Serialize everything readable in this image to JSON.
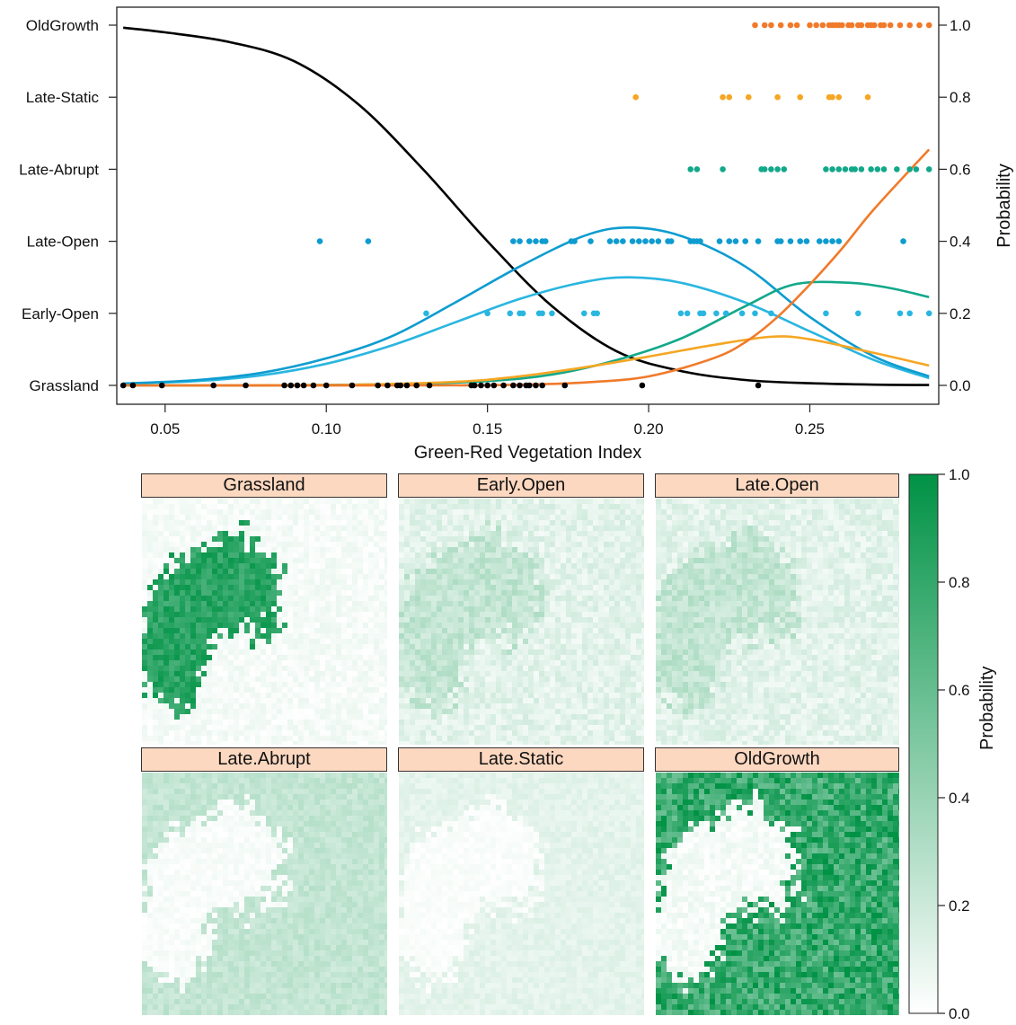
{
  "chart_data": [
    {
      "type": "scatter",
      "title": "",
      "xlabel": "Green-Red Vegetation Index",
      "ylabel_right": "Probability",
      "xlim": [
        0.035,
        0.29
      ],
      "ylim": [
        0,
        1
      ],
      "x_ticks": [
        0.05,
        0.1,
        0.15,
        0.2,
        0.25
      ],
      "x_tick_labels": [
        "0.05",
        "0.10",
        "0.15",
        "0.20",
        "0.25"
      ],
      "y_ticks_right": [
        0.0,
        0.2,
        0.4,
        0.6,
        0.8,
        1.0
      ],
      "y_tick_labels_right": [
        "0.0",
        "0.2",
        "0.4",
        "0.6",
        "0.8",
        "1.0"
      ],
      "categories": [
        "Grassland",
        "Early-Open",
        "Late-Open",
        "Late-Abrupt",
        "Late-Static",
        "OldGrowth"
      ],
      "colors": {
        "Grassland": "#000000",
        "Early-Open": "#29b6e0",
        "Late-Open": "#0e9cd0",
        "Late-Abrupt": "#12a88a",
        "Late-Static": "#f5a623",
        "OldGrowth": "#f07a2a"
      },
      "points": {
        "Grassland": [
          0.037,
          0.04,
          0.049,
          0.065,
          0.075,
          0.087,
          0.089,
          0.091,
          0.093,
          0.096,
          0.1,
          0.108,
          0.116,
          0.119,
          0.122,
          0.123,
          0.125,
          0.128,
          0.132,
          0.145,
          0.146,
          0.148,
          0.15,
          0.152,
          0.155,
          0.158,
          0.16,
          0.162,
          0.163,
          0.165,
          0.167,
          0.174,
          0.198,
          0.234
        ],
        "Early-Open": [
          0.131,
          0.15,
          0.157,
          0.16,
          0.161,
          0.166,
          0.167,
          0.17,
          0.18,
          0.183,
          0.184,
          0.21,
          0.212,
          0.216,
          0.217,
          0.221,
          0.224,
          0.229,
          0.233,
          0.238,
          0.255,
          0.265,
          0.278,
          0.281,
          0.287
        ],
        "Late-Open": [
          0.098,
          0.113,
          0.158,
          0.16,
          0.163,
          0.165,
          0.167,
          0.168,
          0.176,
          0.177,
          0.182,
          0.188,
          0.19,
          0.192,
          0.195,
          0.197,
          0.199,
          0.201,
          0.203,
          0.206,
          0.207,
          0.213,
          0.214,
          0.215,
          0.216,
          0.222,
          0.225,
          0.227,
          0.23,
          0.234,
          0.24,
          0.241,
          0.244,
          0.247,
          0.249,
          0.253,
          0.255,
          0.257,
          0.259,
          0.279
        ],
        "Late-Abrupt": [
          0.213,
          0.215,
          0.223,
          0.235,
          0.236,
          0.238,
          0.24,
          0.242,
          0.255,
          0.257,
          0.259,
          0.261,
          0.263,
          0.264,
          0.266,
          0.269,
          0.271,
          0.273,
          0.277,
          0.281,
          0.283,
          0.287
        ],
        "Late-Static": [
          0.196,
          0.223,
          0.225,
          0.231,
          0.24,
          0.247,
          0.256,
          0.257,
          0.259,
          0.268
        ],
        "OldGrowth": [
          0.233,
          0.236,
          0.238,
          0.241,
          0.244,
          0.246,
          0.25,
          0.252,
          0.254,
          0.256,
          0.257,
          0.258,
          0.259,
          0.26,
          0.262,
          0.263,
          0.265,
          0.266,
          0.268,
          0.269,
          0.27,
          0.272,
          0.273,
          0.275,
          0.278,
          0.281,
          0.284,
          0.287
        ]
      },
      "series": [
        {
          "name": "Grassland",
          "x": [
            0.037,
            0.05,
            0.07,
            0.09,
            0.11,
            0.13,
            0.15,
            0.17,
            0.19,
            0.21,
            0.23,
            0.25,
            0.27,
            0.287
          ],
          "y": [
            0.993,
            0.98,
            0.953,
            0.9,
            0.78,
            0.6,
            0.4,
            0.22,
            0.095,
            0.04,
            0.015,
            0.006,
            0.002,
            0.001
          ]
        },
        {
          "name": "Early-Open",
          "x": [
            0.037,
            0.06,
            0.08,
            0.1,
            0.12,
            0.14,
            0.16,
            0.18,
            0.194,
            0.21,
            0.23,
            0.25,
            0.27,
            0.287
          ],
          "y": [
            0.005,
            0.012,
            0.028,
            0.06,
            0.11,
            0.175,
            0.24,
            0.287,
            0.3,
            0.285,
            0.23,
            0.15,
            0.07,
            0.02
          ]
        },
        {
          "name": "Late-Open",
          "x": [
            0.037,
            0.06,
            0.08,
            0.1,
            0.12,
            0.14,
            0.16,
            0.18,
            0.194,
            0.21,
            0.23,
            0.25,
            0.27,
            0.287
          ],
          "y": [
            0.005,
            0.015,
            0.035,
            0.075,
            0.135,
            0.23,
            0.33,
            0.415,
            0.438,
            0.415,
            0.33,
            0.19,
            0.08,
            0.025
          ]
        },
        {
          "name": "Late-Abrupt",
          "x": [
            0.037,
            0.08,
            0.12,
            0.15,
            0.17,
            0.19,
            0.21,
            0.23,
            0.245,
            0.262,
            0.275,
            0.287
          ],
          "y": [
            0.0,
            0.0,
            0.003,
            0.012,
            0.03,
            0.07,
            0.13,
            0.22,
            0.28,
            0.285,
            0.27,
            0.245
          ]
        },
        {
          "name": "Late-Static",
          "x": [
            0.037,
            0.1,
            0.14,
            0.16,
            0.18,
            0.2,
            0.22,
            0.238,
            0.25,
            0.27,
            0.287
          ],
          "y": [
            0.0,
            0.001,
            0.01,
            0.025,
            0.05,
            0.08,
            0.112,
            0.135,
            0.128,
            0.09,
            0.055
          ]
        },
        {
          "name": "OldGrowth",
          "x": [
            0.037,
            0.13,
            0.16,
            0.18,
            0.2,
            0.22,
            0.23,
            0.24,
            0.25,
            0.26,
            0.27,
            0.287
          ],
          "y": [
            0.0,
            0.0,
            0.002,
            0.008,
            0.025,
            0.075,
            0.12,
            0.19,
            0.28,
            0.38,
            0.49,
            0.655
          ]
        }
      ]
    },
    {
      "type": "heatmap",
      "panels": [
        "Grassland",
        "Early.Open",
        "Late.Open",
        "Late.Abrupt",
        "Late.Static",
        "OldGrowth"
      ],
      "panel_mean_probability": [
        0.35,
        0.15,
        0.17,
        0.2,
        0.1,
        0.55
      ],
      "legend_title": "Probability",
      "legend_range": [
        0.0,
        1.0
      ],
      "legend_ticks": [
        0.0,
        0.2,
        0.4,
        0.6,
        0.8,
        1.0
      ],
      "legend_tick_labels": [
        "0.0",
        "0.2",
        "0.4",
        "0.6",
        "0.8",
        "1.0"
      ],
      "colormap": [
        "#ffffff",
        "#009245"
      ]
    }
  ]
}
